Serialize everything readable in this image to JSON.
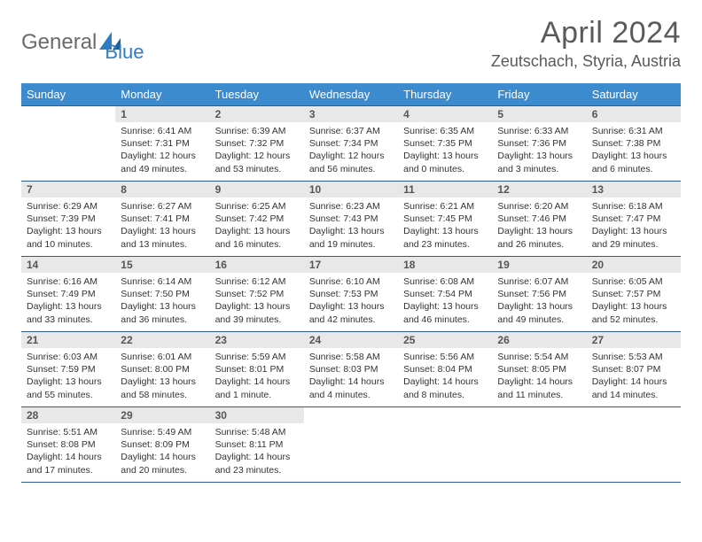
{
  "brand": {
    "part1": "General",
    "part2": "Blue"
  },
  "title": "April 2024",
  "location": "Zeutschach, Styria, Austria",
  "colors": {
    "header_bg": "#3c8bcf",
    "header_text": "#ffffff",
    "daynum_bg": "#e8e8e8",
    "daynum_text": "#555555",
    "body_text": "#333333",
    "rule": "#2f5d8a",
    "logo_gray": "#6a6a6a",
    "logo_blue": "#2e7cc2"
  },
  "weekdays": [
    "Sunday",
    "Monday",
    "Tuesday",
    "Wednesday",
    "Thursday",
    "Friday",
    "Saturday"
  ],
  "startDayIndex": 1,
  "daysInMonth": 30,
  "days": {
    "1": {
      "sunrise": "6:41 AM",
      "sunset": "7:31 PM",
      "daylight": "12 hours and 49 minutes."
    },
    "2": {
      "sunrise": "6:39 AM",
      "sunset": "7:32 PM",
      "daylight": "12 hours and 53 minutes."
    },
    "3": {
      "sunrise": "6:37 AM",
      "sunset": "7:34 PM",
      "daylight": "12 hours and 56 minutes."
    },
    "4": {
      "sunrise": "6:35 AM",
      "sunset": "7:35 PM",
      "daylight": "13 hours and 0 minutes."
    },
    "5": {
      "sunrise": "6:33 AM",
      "sunset": "7:36 PM",
      "daylight": "13 hours and 3 minutes."
    },
    "6": {
      "sunrise": "6:31 AM",
      "sunset": "7:38 PM",
      "daylight": "13 hours and 6 minutes."
    },
    "7": {
      "sunrise": "6:29 AM",
      "sunset": "7:39 PM",
      "daylight": "13 hours and 10 minutes."
    },
    "8": {
      "sunrise": "6:27 AM",
      "sunset": "7:41 PM",
      "daylight": "13 hours and 13 minutes."
    },
    "9": {
      "sunrise": "6:25 AM",
      "sunset": "7:42 PM",
      "daylight": "13 hours and 16 minutes."
    },
    "10": {
      "sunrise": "6:23 AM",
      "sunset": "7:43 PM",
      "daylight": "13 hours and 19 minutes."
    },
    "11": {
      "sunrise": "6:21 AM",
      "sunset": "7:45 PM",
      "daylight": "13 hours and 23 minutes."
    },
    "12": {
      "sunrise": "6:20 AM",
      "sunset": "7:46 PM",
      "daylight": "13 hours and 26 minutes."
    },
    "13": {
      "sunrise": "6:18 AM",
      "sunset": "7:47 PM",
      "daylight": "13 hours and 29 minutes."
    },
    "14": {
      "sunrise": "6:16 AM",
      "sunset": "7:49 PM",
      "daylight": "13 hours and 33 minutes."
    },
    "15": {
      "sunrise": "6:14 AM",
      "sunset": "7:50 PM",
      "daylight": "13 hours and 36 minutes."
    },
    "16": {
      "sunrise": "6:12 AM",
      "sunset": "7:52 PM",
      "daylight": "13 hours and 39 minutes."
    },
    "17": {
      "sunrise": "6:10 AM",
      "sunset": "7:53 PM",
      "daylight": "13 hours and 42 minutes."
    },
    "18": {
      "sunrise": "6:08 AM",
      "sunset": "7:54 PM",
      "daylight": "13 hours and 46 minutes."
    },
    "19": {
      "sunrise": "6:07 AM",
      "sunset": "7:56 PM",
      "daylight": "13 hours and 49 minutes."
    },
    "20": {
      "sunrise": "6:05 AM",
      "sunset": "7:57 PM",
      "daylight": "13 hours and 52 minutes."
    },
    "21": {
      "sunrise": "6:03 AM",
      "sunset": "7:59 PM",
      "daylight": "13 hours and 55 minutes."
    },
    "22": {
      "sunrise": "6:01 AM",
      "sunset": "8:00 PM",
      "daylight": "13 hours and 58 minutes."
    },
    "23": {
      "sunrise": "5:59 AM",
      "sunset": "8:01 PM",
      "daylight": "14 hours and 1 minute."
    },
    "24": {
      "sunrise": "5:58 AM",
      "sunset": "8:03 PM",
      "daylight": "14 hours and 4 minutes."
    },
    "25": {
      "sunrise": "5:56 AM",
      "sunset": "8:04 PM",
      "daylight": "14 hours and 8 minutes."
    },
    "26": {
      "sunrise": "5:54 AM",
      "sunset": "8:05 PM",
      "daylight": "14 hours and 11 minutes."
    },
    "27": {
      "sunrise": "5:53 AM",
      "sunset": "8:07 PM",
      "daylight": "14 hours and 14 minutes."
    },
    "28": {
      "sunrise": "5:51 AM",
      "sunset": "8:08 PM",
      "daylight": "14 hours and 17 minutes."
    },
    "29": {
      "sunrise": "5:49 AM",
      "sunset": "8:09 PM",
      "daylight": "14 hours and 20 minutes."
    },
    "30": {
      "sunrise": "5:48 AM",
      "sunset": "8:11 PM",
      "daylight": "14 hours and 23 minutes."
    }
  },
  "labels": {
    "sunrise": "Sunrise: ",
    "sunset": "Sunset: ",
    "daylight": "Daylight: "
  }
}
